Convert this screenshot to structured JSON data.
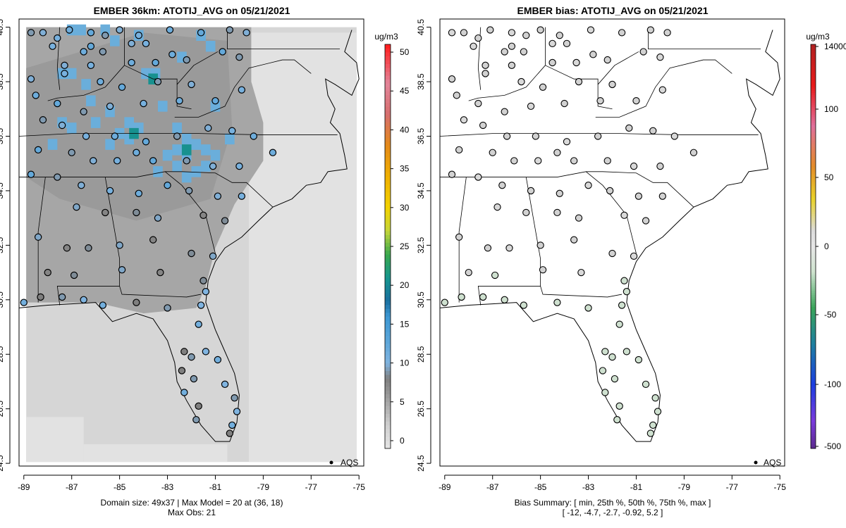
{
  "chart_data": [
    {
      "type": "heatmap",
      "title": "EMBER 36km: ATOTIJ_AVG on 05/21/2021",
      "x_ticks": [
        "-89",
        "-87",
        "-85",
        "-83",
        "-81",
        "-79",
        "-77",
        "-75"
      ],
      "y_ticks": [
        "24.5",
        "26.5",
        "28.5",
        "30.5",
        "32.5",
        "34.5",
        "36.5",
        "38.5",
        "40.5"
      ],
      "xlim": [
        -89.2,
        -74.8
      ],
      "ylim": [
        24.4,
        40.8
      ],
      "colorbar_unit": "ug/m3",
      "colorbar_ticks": [
        "0",
        "5",
        "10",
        "15",
        "20",
        "25",
        "30",
        "35",
        "40",
        "45",
        "50"
      ],
      "colorbar_range": [
        -1,
        51
      ],
      "legend_label": "AQS",
      "caption_line1": "Domain size: 49x37 | Max Model = 20 at (36, 18)",
      "caption_line2": "Max Obs: 21",
      "domain_size": "49x37",
      "max_model": 20,
      "max_obs": 21
    },
    {
      "type": "heatmap",
      "title": "EMBER bias: ATOTIJ_AVG on 05/21/2021",
      "x_ticks": [
        "-89",
        "-87",
        "-85",
        "-83",
        "-81",
        "-79",
        "-77",
        "-75"
      ],
      "y_ticks": [
        "24.5",
        "26.5",
        "28.5",
        "30.5",
        "32.5",
        "34.5",
        "36.5",
        "38.5",
        "40.5"
      ],
      "xlim": [
        -89.2,
        -74.8
      ],
      "ylim": [
        24.4,
        40.8
      ],
      "colorbar_unit": "ug/m3",
      "colorbar_ticks": [
        "14000",
        "100",
        "50",
        "0",
        "-50",
        "-100",
        "-500"
      ],
      "legend_label": "AQS",
      "caption_line1": "Bias Summary: [ min, 25th %, 50th %, 75th %, max ]",
      "caption_line2": "[ -12,   -4.7,   -2.7,   -0.92,   5.2 ]",
      "bias_summary": {
        "min": -12,
        "p25": -4.7,
        "p50": -2.7,
        "p75": -0.92,
        "max": 5.2
      }
    }
  ]
}
